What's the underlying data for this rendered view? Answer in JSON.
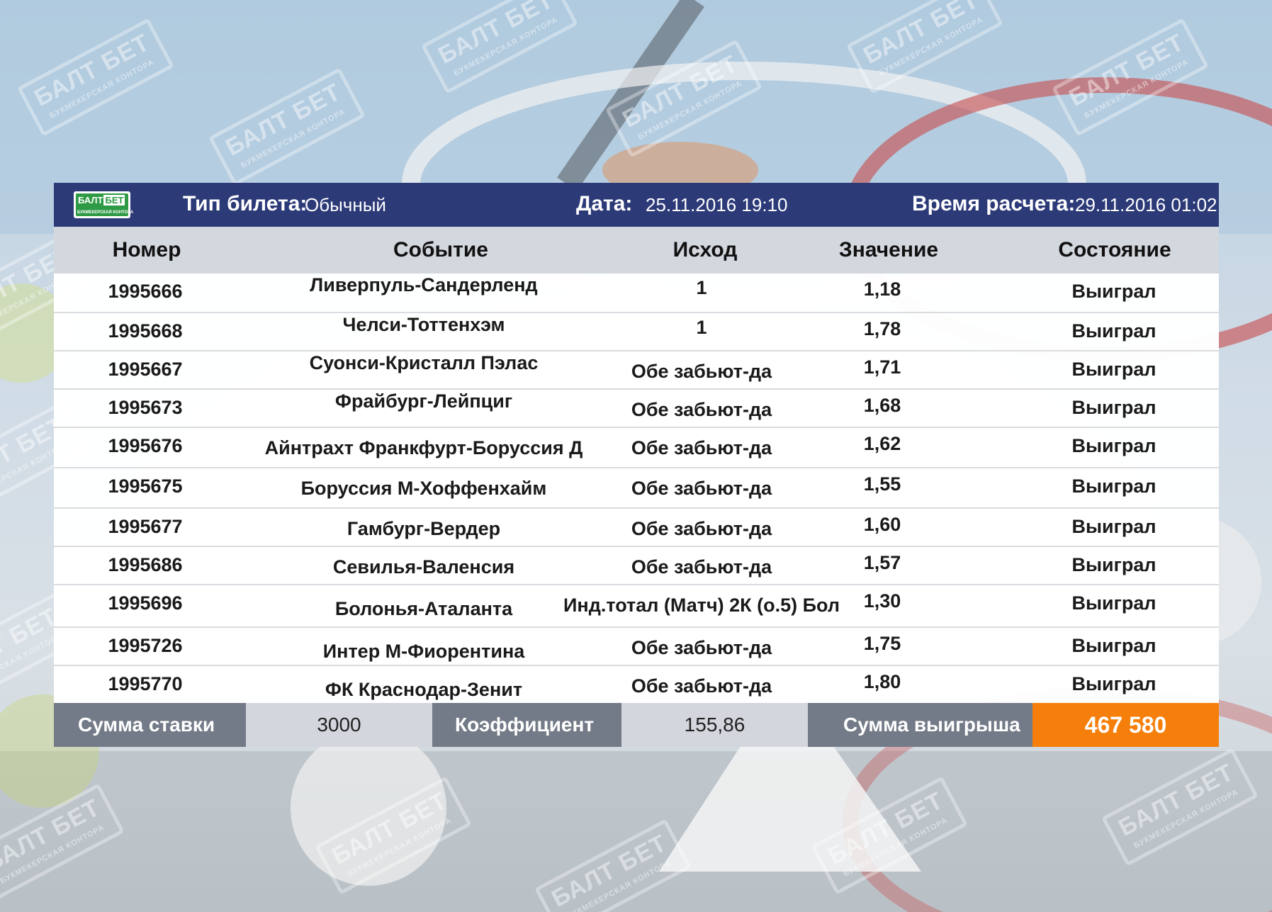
{
  "colors": {
    "header_bg": "#2c3a78",
    "column_header_bg": "#d3d7de",
    "footer_dark": "#747b88",
    "footer_light": "#d3d6dd",
    "win_amount_bg": "#f57f0a",
    "logo_green": "#2e9a45"
  },
  "logo": {
    "name": "baltbet-logo",
    "text_left": "БАЛТ",
    "text_right": "БЕТ",
    "subtitle": "БУКМЕКЕРСКАЯ КОНТОРА"
  },
  "watermark": {
    "main": "БАЛТ БЕТ",
    "sub": "БУКМЕКЕРСКАЯ КОНТОРА"
  },
  "header": {
    "ticket_type_label": "Тип билета:",
    "ticket_type_value": "Обычный",
    "date_label": "Дата:",
    "date_value": "25.11.2016 19:10",
    "settle_label": "Время расчета:",
    "settle_value": "29.11.2016 01:02"
  },
  "columns": [
    "Номер",
    "Событие",
    "Исход",
    "Значение",
    "Состояние"
  ],
  "rows": [
    {
      "number": "1995666",
      "event": "Ливерпуль-Сандерленд",
      "outcome": "1",
      "value": "1,18",
      "status": "Выиграл"
    },
    {
      "number": "1995668",
      "event": "Челси-Тоттенхэм",
      "outcome": "1",
      "value": "1,78",
      "status": "Выиграл"
    },
    {
      "number": "1995667",
      "event": "Суонси-Кристалл Пэлас",
      "outcome": "Обе забьют-да",
      "value": "1,71",
      "status": "Выиграл"
    },
    {
      "number": "1995673",
      "event": "Фрайбург-Лейпциг",
      "outcome": "Обе забьют-да",
      "value": "1,68",
      "status": "Выиграл"
    },
    {
      "number": "1995676",
      "event": "Айнтрахт Франкфурт-Боруссия Д",
      "outcome": "Обе забьют-да",
      "value": "1,62",
      "status": "Выиграл"
    },
    {
      "number": "1995675",
      "event": "Боруссия М-Хоффенхайм",
      "outcome": "Обе забьют-да",
      "value": "1,55",
      "status": "Выиграл"
    },
    {
      "number": "1995677",
      "event": "Гамбург-Вердер",
      "outcome": "Обе забьют-да",
      "value": "1,60",
      "status": "Выиграл"
    },
    {
      "number": "1995686",
      "event": "Севилья-Валенсия",
      "outcome": "Обе забьют-да",
      "value": "1,57",
      "status": "Выиграл"
    },
    {
      "number": "1995696",
      "event": "Болонья-Аталанта",
      "outcome": "Инд.тотал (Матч) 2К (о.5) Бол",
      "value": "1,30",
      "status": "Выиграл"
    },
    {
      "number": "1995726",
      "event": "Интер М-Фиорентина",
      "outcome": "Обе забьют-да",
      "value": "1,75",
      "status": "Выиграл"
    },
    {
      "number": "1995770",
      "event": "ФК Краснодар-Зенит",
      "outcome": "Обе забьют-да",
      "value": "1,80",
      "status": "Выиграл"
    }
  ],
  "footer": {
    "stake_label": "Сумма ставки",
    "stake_value": "3000",
    "coef_label": "Коэффициент",
    "coef_value": "155,86",
    "win_label": "Сумма выигрыша",
    "win_value": "467 580"
  }
}
